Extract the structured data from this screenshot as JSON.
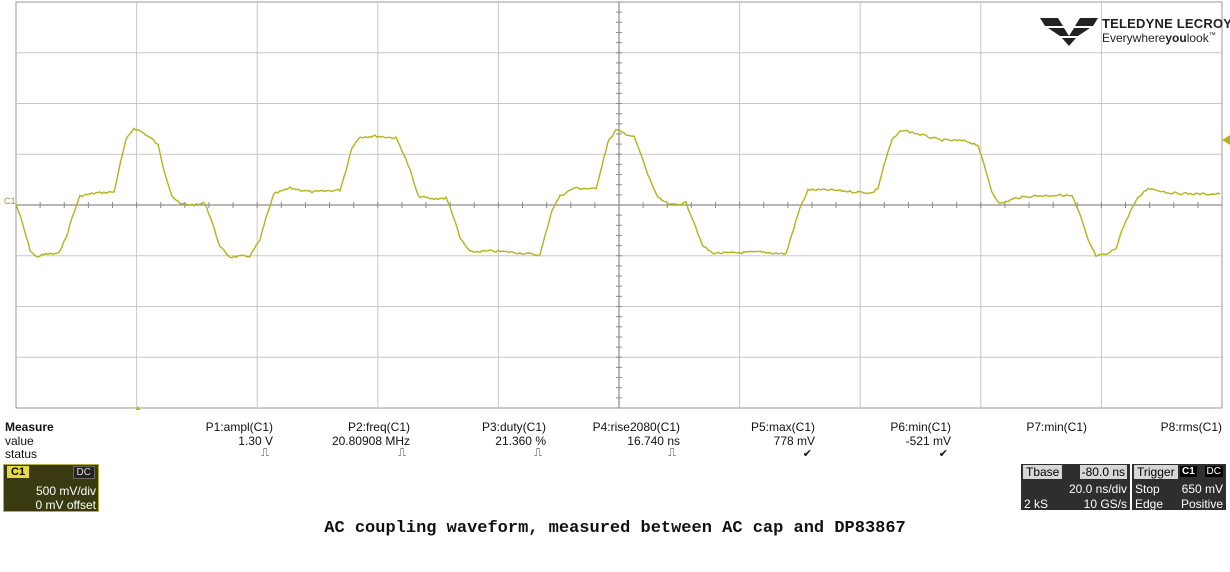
{
  "brand": {
    "name": "TELEDYNE LECROY",
    "tagline_prefix": "Everywhere",
    "tagline_bold": "you",
    "tagline_suffix": "look",
    "tm": "™"
  },
  "screen": {
    "channel_marker": "C1",
    "trace_color": "#b5b21c",
    "grid_color": "#c8c8c8"
  },
  "measure": {
    "title": "Measure",
    "row_value_label": "value",
    "row_status_label": "status",
    "params": [
      {
        "name": "P1:ampl(C1)",
        "value": "1.30 V",
        "status": "pulse-status-icon"
      },
      {
        "name": "P2:freq(C1)",
        "value": "20.80908 MHz",
        "status": "pulse-status-icon"
      },
      {
        "name": "P3:duty(C1)",
        "value": "21.360 %",
        "status": "pulse-status-icon"
      },
      {
        "name": "P4:rise2080(C1)",
        "value": "16.740 ns",
        "status": "pulse-status-icon"
      },
      {
        "name": "P5:max(C1)",
        "value": "778 mV",
        "status": "check-icon"
      },
      {
        "name": "P6:min(C1)",
        "value": "-521 mV",
        "status": "check-icon"
      },
      {
        "name": "P7:min(C1)",
        "value": "",
        "status": ""
      },
      {
        "name": "P8:rms(C1)",
        "value": "",
        "status": ""
      }
    ]
  },
  "channel": {
    "label": "C1",
    "coupling": "DC",
    "vdiv": "500 mV/div",
    "offset": "0 mV offset",
    "color": "#e3dc3a"
  },
  "timebase": {
    "label": "Tbase",
    "delay": "-80.0 ns",
    "tdiv": "20.0 ns/div",
    "samples": "2 kS",
    "rate": "10 GS/s"
  },
  "trigger": {
    "label": "Trigger",
    "source": "C1",
    "coupling": "DC",
    "mode": "Stop",
    "level": "650 mV",
    "type": "Edge",
    "slope": "Positive"
  },
  "caption": "AC coupling waveform, measured between AC cap and DP83867"
}
